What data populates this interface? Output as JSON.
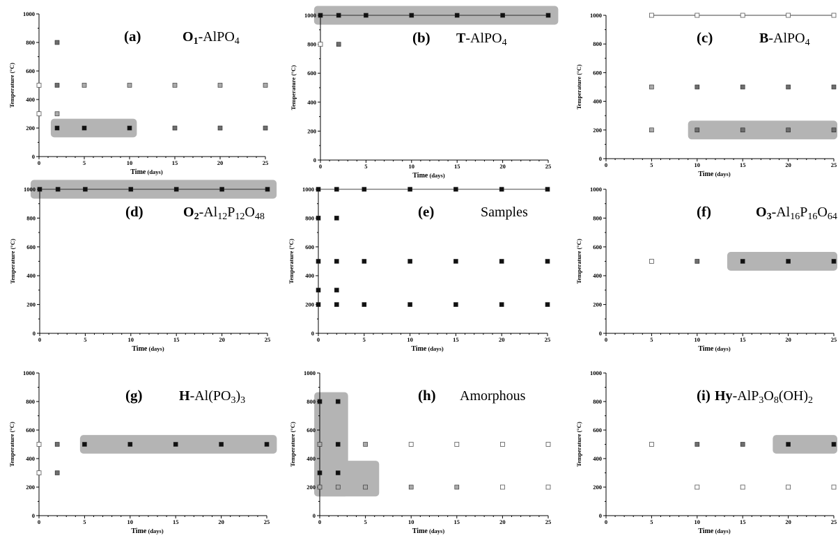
{
  "axis_text": {
    "ylabel": "Temperature (°C)",
    "xlabel_main": "Time",
    "xlabel_unit": "(days)"
  },
  "colors": {
    "open": "#ffffff",
    "light": "#aaaaaa",
    "dark": "#6e6e6e",
    "black": "#111111",
    "highlight": "#b4b4b4"
  },
  "chart_data": [
    {
      "id": "a",
      "type": "scatter",
      "letter": "(a)",
      "title_parts": [
        [
          "O",
          "b"
        ],
        [
          "1",
          "bsub"
        ],
        [
          "-AlPO",
          ""
        ],
        [
          "4",
          "sub"
        ]
      ],
      "xlim": [
        0,
        25
      ],
      "ylim": [
        0,
        1000
      ],
      "xticks": [
        0,
        5,
        10,
        15,
        20,
        25
      ],
      "yticks": [
        0,
        200,
        400,
        600,
        800,
        1000
      ],
      "points": [
        {
          "x": 0,
          "y": 500,
          "c": "open"
        },
        {
          "x": 0,
          "y": 300,
          "c": "open"
        },
        {
          "x": 2,
          "y": 800,
          "c": "dark"
        },
        {
          "x": 2,
          "y": 500,
          "c": "dark"
        },
        {
          "x": 2,
          "y": 300,
          "c": "light"
        },
        {
          "x": 2,
          "y": 200,
          "c": "black"
        },
        {
          "x": 5,
          "y": 500,
          "c": "light"
        },
        {
          "x": 5,
          "y": 200,
          "c": "black"
        },
        {
          "x": 10,
          "y": 500,
          "c": "light"
        },
        {
          "x": 10,
          "y": 200,
          "c": "black"
        },
        {
          "x": 15,
          "y": 500,
          "c": "light"
        },
        {
          "x": 15,
          "y": 200,
          "c": "dark"
        },
        {
          "x": 20,
          "y": 500,
          "c": "light"
        },
        {
          "x": 20,
          "y": 200,
          "c": "dark"
        },
        {
          "x": 25,
          "y": 500,
          "c": "light"
        },
        {
          "x": 25,
          "y": 200,
          "c": "dark"
        }
      ],
      "highlights": [
        {
          "x1": 1.3,
          "x2": 10.8,
          "y1": 135,
          "y2": 265
        }
      ],
      "lines": []
    },
    {
      "id": "b",
      "type": "scatter",
      "letter": "(b)",
      "title_parts": [
        [
          "T",
          "b"
        ],
        [
          "-AlPO",
          ""
        ],
        [
          "4",
          "sub"
        ]
      ],
      "xlim": [
        0,
        25
      ],
      "ylim": [
        0,
        1000
      ],
      "xticks": [
        0,
        5,
        10,
        15,
        20,
        25
      ],
      "yticks": [
        0,
        200,
        400,
        600,
        800,
        1000
      ],
      "points": [
        {
          "x": 0,
          "y": 1000,
          "c": "black"
        },
        {
          "x": 0,
          "y": 800,
          "c": "open"
        },
        {
          "x": 2,
          "y": 1000,
          "c": "black"
        },
        {
          "x": 2,
          "y": 800,
          "c": "dark"
        },
        {
          "x": 5,
          "y": 1000,
          "c": "black"
        },
        {
          "x": 10,
          "y": 1000,
          "c": "black"
        },
        {
          "x": 15,
          "y": 1000,
          "c": "black"
        },
        {
          "x": 20,
          "y": 1000,
          "c": "black"
        },
        {
          "x": 25,
          "y": 1000,
          "c": "black"
        }
      ],
      "highlights": [
        {
          "x1": -0.7,
          "x2": 26.1,
          "y1": 935,
          "y2": 1065
        }
      ],
      "lines": [
        {
          "y": 1000,
          "x1": 0,
          "x2": 25
        }
      ]
    },
    {
      "id": "c",
      "type": "scatter",
      "letter": "(c)",
      "title_parts": [
        [
          "B",
          "b"
        ],
        [
          "-AlPO",
          ""
        ],
        [
          "4",
          "sub"
        ]
      ],
      "xlim": [
        0,
        25
      ],
      "ylim": [
        0,
        1000
      ],
      "xticks": [
        0,
        5,
        10,
        15,
        20,
        25
      ],
      "yticks": [
        0,
        200,
        400,
        600,
        800,
        1000
      ],
      "points": [
        {
          "x": 5,
          "y": 1000,
          "c": "open"
        },
        {
          "x": 10,
          "y": 1000,
          "c": "open"
        },
        {
          "x": 15,
          "y": 1000,
          "c": "open"
        },
        {
          "x": 20,
          "y": 1000,
          "c": "open"
        },
        {
          "x": 25,
          "y": 1000,
          "c": "open"
        },
        {
          "x": 5,
          "y": 500,
          "c": "light"
        },
        {
          "x": 10,
          "y": 500,
          "c": "dark"
        },
        {
          "x": 15,
          "y": 500,
          "c": "dark"
        },
        {
          "x": 20,
          "y": 500,
          "c": "dark"
        },
        {
          "x": 25,
          "y": 500,
          "c": "dark"
        },
        {
          "x": 5,
          "y": 200,
          "c": "light"
        },
        {
          "x": 10,
          "y": 200,
          "c": "dark"
        },
        {
          "x": 15,
          "y": 200,
          "c": "dark"
        },
        {
          "x": 20,
          "y": 200,
          "c": "dark"
        },
        {
          "x": 25,
          "y": 200,
          "c": "dark"
        }
      ],
      "highlights": [
        {
          "x1": 9.0,
          "x2": 26.5,
          "y1": 135,
          "y2": 265
        }
      ],
      "lines": [
        {
          "y": 1000,
          "x1": 5,
          "x2": 25
        }
      ]
    },
    {
      "id": "d",
      "type": "scatter",
      "letter": "(d)",
      "title_parts": [
        [
          "O",
          "b"
        ],
        [
          "2",
          "bsub"
        ],
        [
          "-Al",
          ""
        ],
        [
          "12",
          "sub"
        ],
        [
          "P",
          ""
        ],
        [
          "12",
          "sub"
        ],
        [
          "O",
          ""
        ],
        [
          "48",
          "sub"
        ]
      ],
      "xlim": [
        0,
        25
      ],
      "ylim": [
        0,
        1000
      ],
      "xticks": [
        0,
        5,
        10,
        15,
        20,
        25
      ],
      "yticks": [
        0,
        200,
        400,
        600,
        800,
        1000
      ],
      "points": [
        {
          "x": 0,
          "y": 1000,
          "c": "black"
        },
        {
          "x": 2,
          "y": 1000,
          "c": "black"
        },
        {
          "x": 5,
          "y": 1000,
          "c": "black"
        },
        {
          "x": 10,
          "y": 1000,
          "c": "black"
        },
        {
          "x": 15,
          "y": 1000,
          "c": "black"
        },
        {
          "x": 20,
          "y": 1000,
          "c": "black"
        },
        {
          "x": 25,
          "y": 1000,
          "c": "black"
        }
      ],
      "highlights": [
        {
          "x1": -1.0,
          "x2": 26.0,
          "y1": 935,
          "y2": 1065
        }
      ],
      "lines": [
        {
          "y": 1000,
          "x1": 0,
          "x2": 25
        }
      ]
    },
    {
      "id": "e",
      "type": "scatter",
      "letter": "(e)",
      "title_parts": [
        [
          "Samples",
          ""
        ]
      ],
      "xlim": [
        0,
        25
      ],
      "ylim": [
        0,
        1000
      ],
      "xticks": [
        0,
        5,
        10,
        15,
        20,
        25
      ],
      "yticks": [
        0,
        200,
        400,
        600,
        800,
        1000
      ],
      "points": [
        {
          "x": 0,
          "y": 1000,
          "c": "black"
        },
        {
          "x": 0,
          "y": 800,
          "c": "black"
        },
        {
          "x": 0,
          "y": 500,
          "c": "black"
        },
        {
          "x": 0,
          "y": 300,
          "c": "black"
        },
        {
          "x": 0,
          "y": 200,
          "c": "black"
        },
        {
          "x": 2,
          "y": 1000,
          "c": "black"
        },
        {
          "x": 2,
          "y": 800,
          "c": "black"
        },
        {
          "x": 2,
          "y": 500,
          "c": "black"
        },
        {
          "x": 2,
          "y": 300,
          "c": "black"
        },
        {
          "x": 2,
          "y": 200,
          "c": "black"
        },
        {
          "x": 5,
          "y": 1000,
          "c": "black"
        },
        {
          "x": 5,
          "y": 500,
          "c": "black"
        },
        {
          "x": 5,
          "y": 200,
          "c": "black"
        },
        {
          "x": 10,
          "y": 1000,
          "c": "black"
        },
        {
          "x": 10,
          "y": 500,
          "c": "black"
        },
        {
          "x": 10,
          "y": 200,
          "c": "black"
        },
        {
          "x": 15,
          "y": 1000,
          "c": "black"
        },
        {
          "x": 15,
          "y": 500,
          "c": "black"
        },
        {
          "x": 15,
          "y": 200,
          "c": "black"
        },
        {
          "x": 20,
          "y": 1000,
          "c": "black"
        },
        {
          "x": 20,
          "y": 500,
          "c": "black"
        },
        {
          "x": 20,
          "y": 200,
          "c": "black"
        },
        {
          "x": 25,
          "y": 1000,
          "c": "black"
        },
        {
          "x": 25,
          "y": 500,
          "c": "black"
        },
        {
          "x": 25,
          "y": 200,
          "c": "black"
        }
      ],
      "highlights": [],
      "lines": [
        {
          "y": 1000,
          "x1": 0,
          "x2": 25
        }
      ]
    },
    {
      "id": "f",
      "type": "scatter",
      "letter": "(f)",
      "title_parts": [
        [
          "O",
          "b"
        ],
        [
          "3",
          "bsub"
        ],
        [
          "-Al",
          ""
        ],
        [
          "16",
          "sub"
        ],
        [
          "P",
          ""
        ],
        [
          "16",
          "sub"
        ],
        [
          "O",
          ""
        ],
        [
          "64",
          "sub"
        ]
      ],
      "xlim": [
        0,
        25
      ],
      "ylim": [
        0,
        1000
      ],
      "xticks": [
        0,
        5,
        10,
        15,
        20,
        25
      ],
      "yticks": [
        0,
        200,
        400,
        600,
        800,
        1000
      ],
      "points": [
        {
          "x": 5,
          "y": 500,
          "c": "open"
        },
        {
          "x": 10,
          "y": 500,
          "c": "dark"
        },
        {
          "x": 15,
          "y": 500,
          "c": "black"
        },
        {
          "x": 20,
          "y": 500,
          "c": "black"
        },
        {
          "x": 25,
          "y": 500,
          "c": "black"
        }
      ],
      "highlights": [
        {
          "x1": 13.3,
          "x2": 26.5,
          "y1": 435,
          "y2": 565
        }
      ],
      "lines": []
    },
    {
      "id": "g",
      "type": "scatter",
      "letter": "(g)",
      "title_parts": [
        [
          "H",
          "b"
        ],
        [
          "-Al(PO",
          ""
        ],
        [
          "3",
          "sub"
        ],
        [
          ")",
          ""
        ],
        [
          "3",
          "sub"
        ]
      ],
      "xlim": [
        0,
        25
      ],
      "ylim": [
        0,
        1000
      ],
      "xticks": [
        0,
        5,
        10,
        15,
        20,
        25
      ],
      "yticks": [
        0,
        200,
        400,
        600,
        800,
        1000
      ],
      "points": [
        {
          "x": 0,
          "y": 500,
          "c": "open"
        },
        {
          "x": 0,
          "y": 300,
          "c": "open"
        },
        {
          "x": 2,
          "y": 500,
          "c": "dark"
        },
        {
          "x": 2,
          "y": 300,
          "c": "dark"
        },
        {
          "x": 5,
          "y": 500,
          "c": "black"
        },
        {
          "x": 10,
          "y": 500,
          "c": "black"
        },
        {
          "x": 15,
          "y": 500,
          "c": "black"
        },
        {
          "x": 20,
          "y": 500,
          "c": "black"
        },
        {
          "x": 25,
          "y": 500,
          "c": "black"
        }
      ],
      "highlights": [
        {
          "x1": 4.5,
          "x2": 26.1,
          "y1": 435,
          "y2": 565
        }
      ],
      "lines": []
    },
    {
      "id": "h",
      "type": "scatter",
      "letter": "(h)",
      "title_parts": [
        [
          "Amorphous",
          ""
        ]
      ],
      "xlim": [
        0,
        25
      ],
      "ylim": [
        0,
        1000
      ],
      "xticks": [
        0,
        5,
        10,
        15,
        20,
        25
      ],
      "yticks": [
        0,
        200,
        400,
        600,
        800,
        1000
      ],
      "points": [
        {
          "x": 0,
          "y": 800,
          "c": "black"
        },
        {
          "x": 0,
          "y": 500,
          "c": "light"
        },
        {
          "x": 0,
          "y": 300,
          "c": "black"
        },
        {
          "x": 0,
          "y": 200,
          "c": "light"
        },
        {
          "x": 2,
          "y": 800,
          "c": "black"
        },
        {
          "x": 2,
          "y": 500,
          "c": "black"
        },
        {
          "x": 2,
          "y": 300,
          "c": "black"
        },
        {
          "x": 2,
          "y": 200,
          "c": "light"
        },
        {
          "x": 5,
          "y": 500,
          "c": "light"
        },
        {
          "x": 5,
          "y": 200,
          "c": "light"
        },
        {
          "x": 10,
          "y": 500,
          "c": "open"
        },
        {
          "x": 10,
          "y": 200,
          "c": "light"
        },
        {
          "x": 15,
          "y": 500,
          "c": "open"
        },
        {
          "x": 15,
          "y": 200,
          "c": "light"
        },
        {
          "x": 20,
          "y": 500,
          "c": "open"
        },
        {
          "x": 20,
          "y": 200,
          "c": "open"
        },
        {
          "x": 25,
          "y": 500,
          "c": "open"
        },
        {
          "x": 25,
          "y": 200,
          "c": "open"
        }
      ],
      "highlights": [
        {
          "x1": -0.6,
          "x2": 3.1,
          "y1": 135,
          "y2": 865
        },
        {
          "x1": -0.6,
          "x2": 6.5,
          "y1": 135,
          "y2": 385
        }
      ],
      "lines": []
    },
    {
      "id": "i",
      "type": "scatter",
      "letter": "(i)",
      "title_parts": [
        [
          "Hy",
          "b"
        ],
        [
          "-AlP",
          ""
        ],
        [
          "3",
          "sub"
        ],
        [
          "O",
          ""
        ],
        [
          "8",
          "sub"
        ],
        [
          "(OH)",
          ""
        ],
        [
          "2",
          "sub"
        ]
      ],
      "xlim": [
        0,
        25
      ],
      "ylim": [
        0,
        1000
      ],
      "xticks": [
        0,
        5,
        10,
        15,
        20,
        25
      ],
      "yticks": [
        0,
        200,
        400,
        600,
        800,
        1000
      ],
      "points": [
        {
          "x": 5,
          "y": 500,
          "c": "open"
        },
        {
          "x": 10,
          "y": 500,
          "c": "dark"
        },
        {
          "x": 15,
          "y": 500,
          "c": "dark"
        },
        {
          "x": 20,
          "y": 500,
          "c": "black"
        },
        {
          "x": 25,
          "y": 500,
          "c": "black"
        },
        {
          "x": 10,
          "y": 200,
          "c": "open"
        },
        {
          "x": 15,
          "y": 200,
          "c": "open"
        },
        {
          "x": 20,
          "y": 200,
          "c": "open"
        },
        {
          "x": 25,
          "y": 200,
          "c": "open"
        }
      ],
      "highlights": [
        {
          "x1": 18.3,
          "x2": 26.5,
          "y1": 435,
          "y2": 565
        }
      ],
      "lines": []
    }
  ]
}
